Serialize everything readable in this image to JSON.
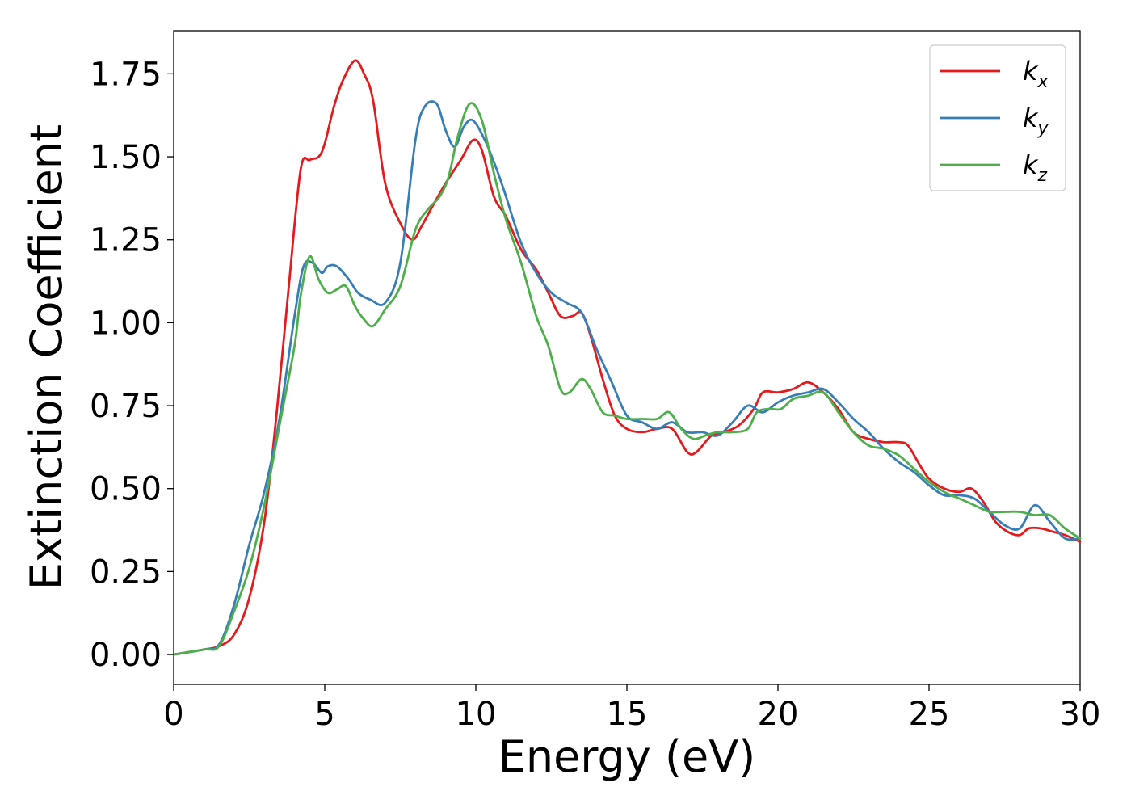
{
  "chart_data": {
    "type": "line",
    "title": "",
    "xlabel": "Energy (eV)",
    "ylabel": "Extinction Coefficient",
    "xlim": [
      0,
      30
    ],
    "ylim": [
      -0.09,
      1.88
    ],
    "xticks": [
      0,
      5,
      10,
      15,
      20,
      25,
      30
    ],
    "xtick_labels": [
      "0",
      "5",
      "10",
      "15",
      "20",
      "25",
      "30"
    ],
    "yticks": [
      0,
      0.25,
      0.5,
      0.75,
      1.0,
      1.25,
      1.5,
      1.75
    ],
    "ytick_labels": [
      "0.00",
      "0.25",
      "0.50",
      "0.75",
      "1.00",
      "1.25",
      "1.50",
      "1.75"
    ],
    "grid": false,
    "legend_position": "top-right",
    "series": [
      {
        "name": "k",
        "subscript": "x",
        "color": "#e41a1c",
        "x": [
          0,
          1,
          1.5,
          2,
          2.5,
          3,
          3.4,
          3.8,
          4.2,
          4.5,
          4.8,
          5.0,
          5.3,
          5.6,
          6.0,
          6.3,
          6.6,
          7.0,
          7.5,
          7.9,
          8.2,
          8.5,
          9.0,
          9.5,
          9.9,
          10.2,
          10.6,
          11.0,
          11.5,
          12.0,
          12.4,
          12.8,
          13.2,
          13.5,
          13.8,
          14.2,
          14.6,
          15.0,
          15.5,
          16.0,
          16.5,
          17.0,
          17.3,
          17.8,
          18.2,
          18.7,
          19.2,
          19.5,
          20.0,
          20.5,
          21.0,
          21.5,
          22.0,
          22.5,
          23.0,
          23.5,
          24.0,
          24.3,
          24.7,
          25.0,
          25.5,
          26.0,
          26.4,
          26.8,
          27.2,
          27.6,
          28.0,
          28.3,
          28.7,
          29.1,
          29.5,
          30.0
        ],
        "y": [
          0.0,
          0.015,
          0.025,
          0.06,
          0.17,
          0.4,
          0.72,
          1.1,
          1.46,
          1.49,
          1.5,
          1.54,
          1.65,
          1.73,
          1.79,
          1.75,
          1.67,
          1.42,
          1.3,
          1.25,
          1.29,
          1.34,
          1.42,
          1.49,
          1.55,
          1.52,
          1.38,
          1.32,
          1.22,
          1.16,
          1.09,
          1.02,
          1.02,
          1.03,
          0.96,
          0.83,
          0.72,
          0.68,
          0.67,
          0.68,
          0.68,
          0.61,
          0.61,
          0.66,
          0.67,
          0.69,
          0.74,
          0.79,
          0.79,
          0.8,
          0.82,
          0.79,
          0.74,
          0.67,
          0.65,
          0.64,
          0.64,
          0.63,
          0.57,
          0.53,
          0.5,
          0.49,
          0.5,
          0.46,
          0.4,
          0.37,
          0.36,
          0.38,
          0.38,
          0.37,
          0.36,
          0.34
        ]
      },
      {
        "name": "k",
        "subscript": "y",
        "color": "#377eb8",
        "x": [
          0,
          1,
          1.5,
          2,
          2.5,
          3,
          3.5,
          4.0,
          4.3,
          4.6,
          4.9,
          5.1,
          5.4,
          5.8,
          6.1,
          6.5,
          7.0,
          7.5,
          8.0,
          8.3,
          8.7,
          9.0,
          9.3,
          9.6,
          9.9,
          10.3,
          10.7,
          11.0,
          11.5,
          12.0,
          12.5,
          13.0,
          13.5,
          14.0,
          14.5,
          15.0,
          15.5,
          16.0,
          16.5,
          17.0,
          17.5,
          18.0,
          18.5,
          19.0,
          19.5,
          20.0,
          20.5,
          21.0,
          21.5,
          22.0,
          22.5,
          23.0,
          23.5,
          24.0,
          24.5,
          25.0,
          25.5,
          26.0,
          26.5,
          27.0,
          27.5,
          28.0,
          28.5,
          29.0,
          29.5,
          30.0
        ],
        "y": [
          0.0,
          0.015,
          0.03,
          0.15,
          0.33,
          0.49,
          0.71,
          1.02,
          1.17,
          1.18,
          1.15,
          1.17,
          1.17,
          1.13,
          1.09,
          1.07,
          1.06,
          1.18,
          1.55,
          1.65,
          1.66,
          1.58,
          1.53,
          1.59,
          1.61,
          1.55,
          1.46,
          1.38,
          1.24,
          1.15,
          1.09,
          1.06,
          1.03,
          0.92,
          0.82,
          0.72,
          0.7,
          0.68,
          0.7,
          0.67,
          0.67,
          0.66,
          0.7,
          0.75,
          0.73,
          0.76,
          0.78,
          0.79,
          0.8,
          0.76,
          0.71,
          0.67,
          0.62,
          0.58,
          0.55,
          0.51,
          0.48,
          0.48,
          0.47,
          0.43,
          0.39,
          0.38,
          0.45,
          0.4,
          0.35,
          0.35
        ]
      },
      {
        "name": "k",
        "subscript": "z",
        "color": "#4daf4a",
        "x": [
          0,
          1,
          1.5,
          2,
          2.5,
          3,
          3.5,
          4.0,
          4.2,
          4.5,
          4.8,
          5.1,
          5.4,
          5.7,
          6.0,
          6.3,
          6.6,
          7.0,
          7.5,
          8.0,
          8.4,
          8.8,
          9.1,
          9.4,
          9.8,
          10.2,
          10.6,
          11.0,
          11.5,
          12.0,
          12.4,
          12.8,
          13.1,
          13.5,
          13.8,
          14.2,
          14.6,
          15.0,
          15.5,
          16.0,
          16.4,
          16.8,
          17.2,
          17.6,
          18.0,
          18.5,
          19.0,
          19.3,
          19.7,
          20.1,
          20.5,
          21.0,
          21.5,
          22.0,
          22.5,
          23.0,
          23.5,
          24.0,
          24.5,
          25.0,
          25.5,
          26.0,
          26.5,
          27.0,
          27.5,
          28.0,
          28.5,
          29.0,
          29.5,
          30.0
        ],
        "y": [
          0.0,
          0.015,
          0.025,
          0.13,
          0.26,
          0.45,
          0.69,
          0.93,
          1.08,
          1.2,
          1.13,
          1.09,
          1.1,
          1.11,
          1.05,
          1.01,
          0.99,
          1.04,
          1.11,
          1.28,
          1.34,
          1.38,
          1.44,
          1.56,
          1.66,
          1.61,
          1.45,
          1.31,
          1.18,
          1.02,
          0.93,
          0.8,
          0.79,
          0.83,
          0.8,
          0.73,
          0.72,
          0.71,
          0.71,
          0.71,
          0.73,
          0.68,
          0.65,
          0.66,
          0.67,
          0.67,
          0.68,
          0.73,
          0.74,
          0.74,
          0.77,
          0.78,
          0.79,
          0.73,
          0.67,
          0.63,
          0.62,
          0.6,
          0.56,
          0.52,
          0.49,
          0.47,
          0.45,
          0.43,
          0.43,
          0.43,
          0.42,
          0.42,
          0.38,
          0.35
        ]
      }
    ]
  }
}
